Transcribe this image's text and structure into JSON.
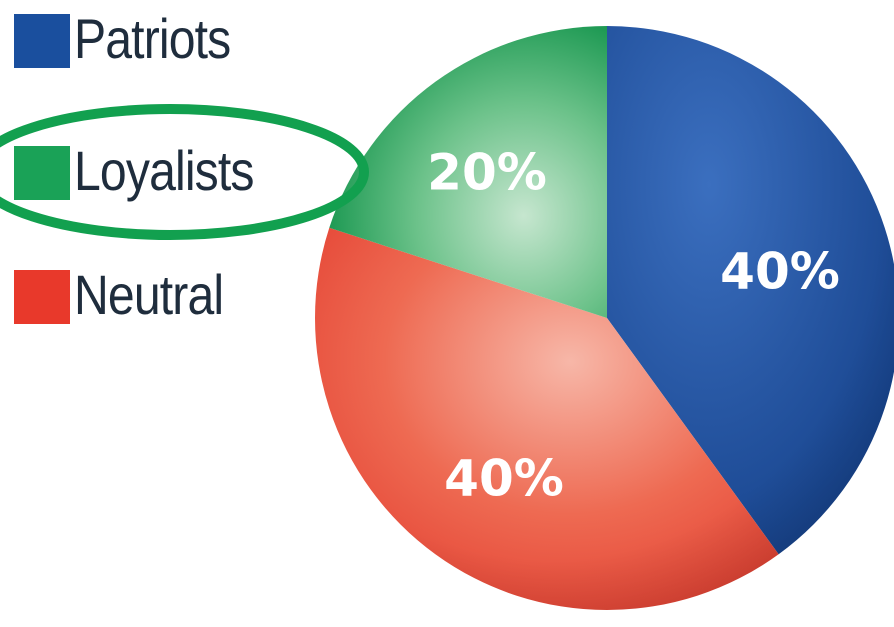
{
  "chart_data": {
    "type": "pie",
    "categories": [
      "Patriots",
      "Loyalists",
      "Neutral"
    ],
    "values": [
      40,
      20,
      40
    ],
    "data_labels": [
      "40%",
      "20%",
      "40%"
    ],
    "colors": [
      "#1a4f9e",
      "#1aa257",
      "#e8392b"
    ],
    "legend": {
      "placement": "top-left",
      "entries": [
        "Patriots",
        "Loyalists",
        "Neutral"
      ]
    },
    "highlighted_entry": "Loyalists",
    "highlight_color": "#0fa050"
  }
}
